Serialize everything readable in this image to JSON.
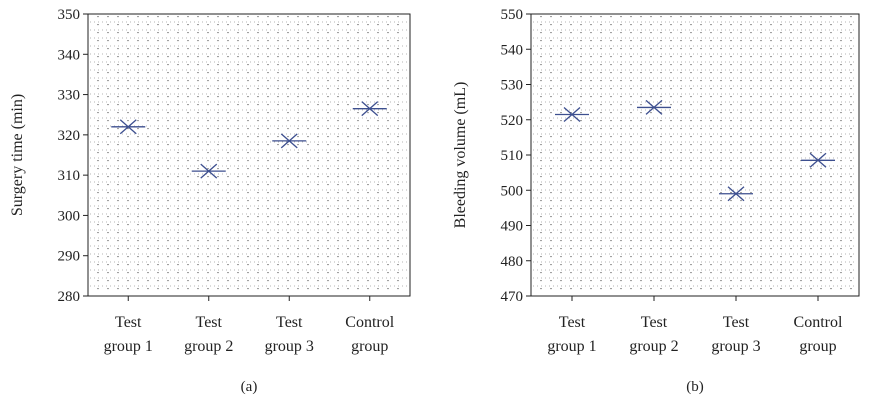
{
  "chart_data": [
    {
      "type": "scatter",
      "panel_label": "(a)",
      "ylabel": "Surgery time (min)",
      "xlabel": "",
      "categories": [
        [
          "Test",
          "group 1"
        ],
        [
          "Test",
          "group 2"
        ],
        [
          "Test",
          "group 3"
        ],
        [
          "Control",
          "group"
        ]
      ],
      "values": [
        322,
        311,
        318.5,
        326.5
      ],
      "ylim": [
        280,
        350
      ],
      "yticks": [
        280,
        290,
        300,
        310,
        320,
        330,
        340,
        350
      ],
      "grid": "dotted",
      "marker_color": "#3d4f8f"
    },
    {
      "type": "scatter",
      "panel_label": "(b)",
      "ylabel": "Bleeding volume (mL)",
      "xlabel": "",
      "categories": [
        [
          "Test",
          "group 1"
        ],
        [
          "Test",
          "group 2"
        ],
        [
          "Test",
          "group 3"
        ],
        [
          "Control",
          "group"
        ]
      ],
      "values": [
        521.5,
        523.5,
        499,
        508.5
      ],
      "ylim": [
        470,
        550
      ],
      "yticks": [
        470,
        480,
        490,
        500,
        510,
        520,
        530,
        540,
        550
      ],
      "grid": "dotted",
      "marker_color": "#3d4f8f"
    }
  ]
}
